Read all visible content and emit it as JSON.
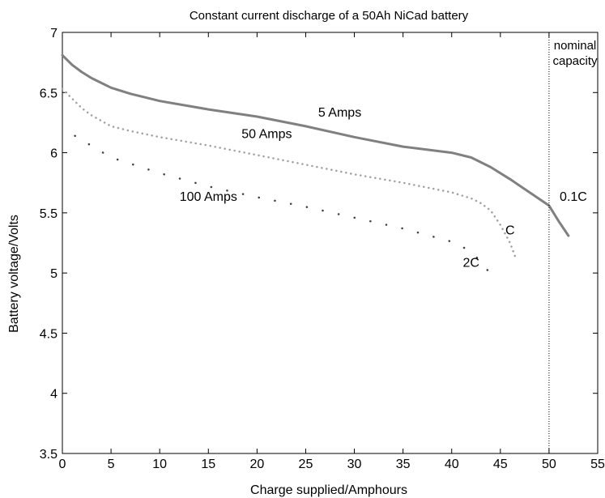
{
  "chart_data": {
    "type": "line",
    "title": "Constant current discharge of a 50Ah NiCad battery",
    "xlabel": "Charge supplied/Amphours",
    "ylabel": "Battery voltage/Volts",
    "xlim": [
      0,
      55
    ],
    "ylim": [
      3.5,
      7
    ],
    "xticks": [
      "0",
      "5",
      "10",
      "15",
      "20",
      "25",
      "30",
      "35",
      "40",
      "45",
      "50",
      "55"
    ],
    "yticks": [
      "3.5",
      "4",
      "4.5",
      "5",
      "5.5",
      "6",
      "6.5",
      "7"
    ],
    "grid": false,
    "series": [
      {
        "name": "5 Amps",
        "rate_label": "0.1C",
        "style": "solid",
        "color": "#808080",
        "x": [
          0,
          1,
          2,
          3,
          5,
          7,
          10,
          15,
          20,
          25,
          30,
          35,
          38,
          40,
          42,
          44,
          46,
          48,
          50,
          51,
          52
        ],
        "y": [
          6.81,
          6.73,
          6.67,
          6.62,
          6.54,
          6.49,
          6.43,
          6.36,
          6.3,
          6.22,
          6.13,
          6.05,
          6.02,
          6.0,
          5.96,
          5.88,
          5.78,
          5.67,
          5.56,
          5.43,
          5.31
        ]
      },
      {
        "name": "50 Amps",
        "rate_label": "C",
        "style": "dotted",
        "color": "#a0a0a0",
        "x": [
          0,
          1,
          2,
          3,
          5,
          7,
          10,
          15,
          20,
          25,
          30,
          35,
          40,
          42,
          43,
          44,
          45,
          46,
          46.6
        ],
        "y": [
          6.53,
          6.45,
          6.37,
          6.31,
          6.22,
          6.18,
          6.13,
          6.06,
          5.98,
          5.9,
          5.82,
          5.75,
          5.67,
          5.62,
          5.58,
          5.52,
          5.4,
          5.25,
          5.12
        ]
      },
      {
        "name": "100 Amps",
        "rate_label": "2C",
        "style": "dotted",
        "color": "#404040",
        "x": [
          1.3,
          5,
          10,
          15,
          20,
          25,
          30,
          35,
          40,
          41.5,
          43,
          44.5
        ],
        "y": [
          6.14,
          5.96,
          5.83,
          5.72,
          5.63,
          5.55,
          5.46,
          5.37,
          5.26,
          5.2,
          5.1,
          4.93
        ]
      }
    ],
    "annotations": [
      {
        "text": "5 Amps",
        "x": 28.5,
        "y": 6.3
      },
      {
        "text": "50 Amps",
        "x": 21,
        "y": 6.12
      },
      {
        "text": "100 Amps",
        "x": 15,
        "y": 5.6
      },
      {
        "text": "0.1C",
        "x": 52.5,
        "y": 5.6
      },
      {
        "text": "C",
        "x": 46,
        "y": 5.32
      },
      {
        "text": "2C",
        "x": 42,
        "y": 5.05
      }
    ],
    "vline": {
      "x": 50,
      "label_lines": [
        "nominal",
        "capacity"
      ]
    }
  }
}
